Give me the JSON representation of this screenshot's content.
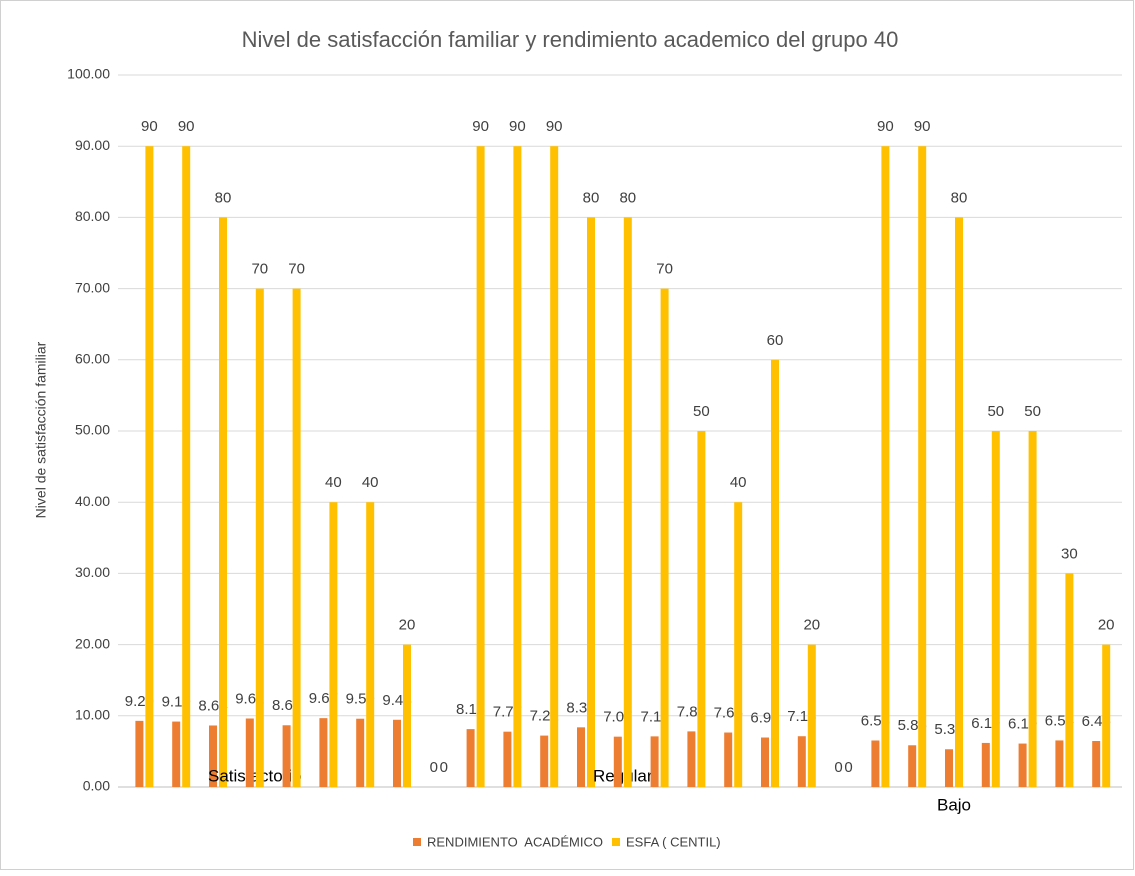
{
  "chart_data": {
    "type": "bar",
    "title": "Nivel de satisfacción familiar y rendimiento academico del grupo 40",
    "y_label": "Nivel de satisfacción familiar",
    "categories": [
      null,
      null,
      null,
      "Satisfactorio",
      null,
      null,
      null,
      null,
      null,
      null,
      null,
      null,
      null,
      "Regular",
      null,
      null,
      null,
      null,
      null,
      null,
      null,
      null,
      "Bajo",
      null,
      null,
      null,
      null
    ],
    "series": [
      {
        "name": "RENDIMIENTO  ACADÉMICO",
        "color": "#ED7D31",
        "values": [
          9.29,
          9.19,
          8.64,
          9.62,
          8.67,
          9.67,
          9.59,
          9.44,
          0,
          8.13,
          7.77,
          7.22,
          8.38,
          7.07,
          7.11,
          7.81,
          7.65,
          6.95,
          7.13,
          0,
          6.53,
          5.86,
          5.3,
          6.19,
          6.1,
          6.54,
          6.46
        ],
        "value_labels": [
          "9.29",
          "9.19",
          "8.64",
          "9.62",
          "8.67",
          "9.67",
          "9.59",
          "9.44",
          "0",
          "8.13",
          "7.77",
          "7.22",
          "8.38",
          "7.07",
          "7.11",
          "7.81",
          "7.65",
          "6.95",
          "7.13",
          "0",
          "6.53",
          "5.86",
          "5.30",
          "6.19",
          "6.10",
          "6.54",
          "6.46"
        ]
      },
      {
        "name": "ESFA ( CENTIL)",
        "color": "#FFC000",
        "values": [
          90,
          90,
          80,
          70,
          70,
          40,
          40,
          20,
          0,
          90,
          90,
          90,
          80,
          80,
          70,
          50,
          40,
          60,
          20,
          0,
          90,
          90,
          80,
          50,
          50,
          30,
          20
        ]
      }
    ],
    "ylim": [
      0,
      100
    ],
    "yticks": [
      {
        "value": 0,
        "label": "0.00"
      },
      {
        "value": 10,
        "label": "10.00"
      },
      {
        "value": 20,
        "label": "20.00"
      },
      {
        "value": 30,
        "label": "30.00"
      },
      {
        "value": 40,
        "label": "40.00"
      },
      {
        "value": 50,
        "label": "50.00"
      },
      {
        "value": 60,
        "label": "60.00"
      },
      {
        "value": 70,
        "label": "70.00"
      },
      {
        "value": 80,
        "label": "80.00"
      },
      {
        "value": 90,
        "label": "90.00"
      },
      {
        "value": 100,
        "label": "100.00"
      }
    ],
    "grid": true,
    "legend": "bottom"
  }
}
